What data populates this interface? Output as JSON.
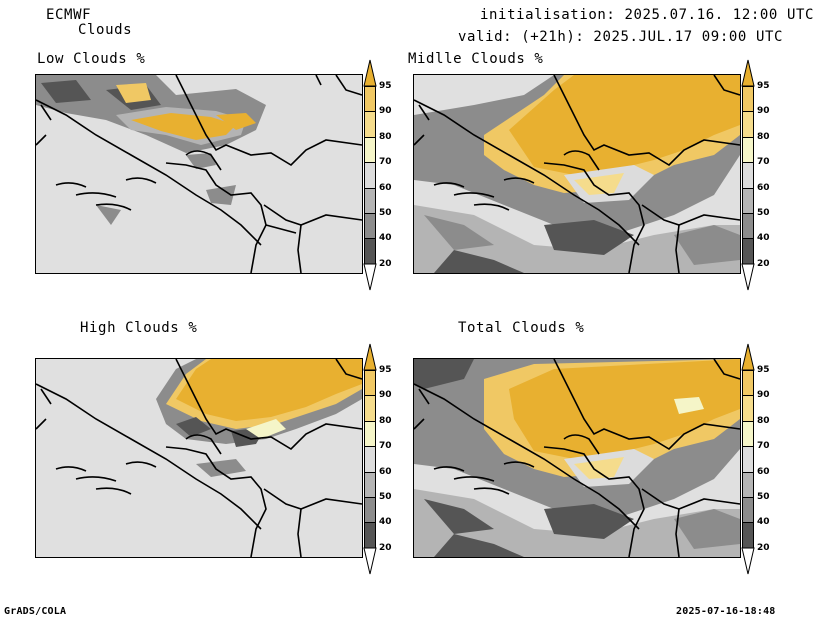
{
  "header": {
    "model": "ECMWF",
    "product": "Clouds",
    "initialisation": "initialisation: 2025.07.16. 12:00 UTC",
    "valid": "valid: (+21h): 2025.JUL.17 09:00 UTC"
  },
  "panels": [
    {
      "title": "Low Clouds %"
    },
    {
      "title": "Midlle Clouds %"
    },
    {
      "title": "High Clouds %"
    },
    {
      "title": "Total Clouds %"
    }
  ],
  "colorbar": {
    "levels": [
      "20",
      "40",
      "50",
      "60",
      "70",
      "80",
      "90",
      "95"
    ],
    "colors": [
      "#ffffff",
      "#555555",
      "#8c8c8c",
      "#b4b4b4",
      "#dcdcdc",
      "#f5f5c8",
      "#f5dc8c",
      "#f0c864",
      "#e8b030"
    ]
  },
  "colors": {
    "background_field": "#e0e0e0",
    "coast_border": "#000000"
  },
  "footer": {
    "left": "GrADS/COLA",
    "right": "2025-07-16-18:48"
  }
}
